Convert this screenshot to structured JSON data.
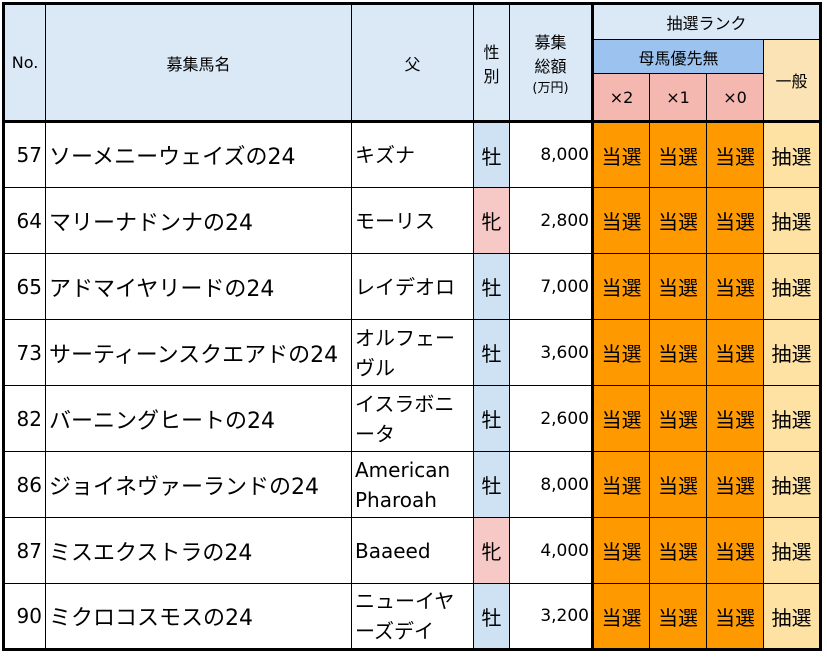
{
  "header": {
    "no": "No.",
    "horse_name": "募集馬名",
    "sire": "父",
    "sex_line1": "性",
    "sex_line2": "別",
    "amount_line1": "募集",
    "amount_line2": "総額",
    "amount_unit": "(万円)",
    "rank_title": "抽選ランク",
    "rank_sub": "母馬優先無",
    "mult_x2": "×2",
    "mult_x1": "×1",
    "mult_x0": "×0",
    "ippan": "一般"
  },
  "rows": [
    {
      "no": "57",
      "name": "ソーメニーウェイズの24",
      "sire": "キズナ",
      "sex": "牡",
      "sex_type": "m",
      "amount": "8,000",
      "x2": "当選",
      "x1": "当選",
      "x0": "当選",
      "ippan": "抽選"
    },
    {
      "no": "64",
      "name": "マリーナドンナの24",
      "sire": "モーリス",
      "sex": "牝",
      "sex_type": "f",
      "amount": "2,800",
      "x2": "当選",
      "x1": "当選",
      "x0": "当選",
      "ippan": "抽選"
    },
    {
      "no": "65",
      "name": "アドマイヤリードの24",
      "sire": "レイデオロ",
      "sex": "牡",
      "sex_type": "m",
      "amount": "7,000",
      "x2": "当選",
      "x1": "当選",
      "x0": "当選",
      "ippan": "抽選"
    },
    {
      "no": "73",
      "name": "サーティーンスクエアドの24",
      "sire": "オルフェーヴル",
      "sex": "牡",
      "sex_type": "m",
      "amount": "3,600",
      "x2": "当選",
      "x1": "当選",
      "x0": "当選",
      "ippan": "抽選"
    },
    {
      "no": "82",
      "name": "バーニングヒートの24",
      "sire": "イスラボニータ",
      "sex": "牡",
      "sex_type": "m",
      "amount": "2,600",
      "x2": "当選",
      "x1": "当選",
      "x0": "当選",
      "ippan": "抽選"
    },
    {
      "no": "86",
      "name": "ジョイネヴァーランドの24",
      "sire": "American Pharoah",
      "sex": "牡",
      "sex_type": "m",
      "amount": "8,000",
      "x2": "当選",
      "x1": "当選",
      "x0": "当選",
      "ippan": "抽選"
    },
    {
      "no": "87",
      "name": "ミスエクストラの24",
      "sire": "Baaeed",
      "sex": "牝",
      "sex_type": "f",
      "amount": "4,000",
      "x2": "当選",
      "x1": "当選",
      "x0": "当選",
      "ippan": "抽選"
    },
    {
      "no": "90",
      "name": "ミクロコスモスの24",
      "sire": "ニューイヤーズデイ",
      "sex": "牡",
      "sex_type": "m",
      "amount": "3,200",
      "x2": "当選",
      "x1": "当選",
      "x0": "当選",
      "ippan": "抽選"
    }
  ],
  "colors": {
    "header_bg": "#dbe9f7",
    "rank_sub_bg": "#9cc3ef",
    "mult_bg": "#f4b8b0",
    "ippan_header_bg": "#fce3b6",
    "win_bg": "#ff9900",
    "lottery_bg": "#fde2a4",
    "male_bg": "#cfe2f3",
    "female_bg": "#f7c9c6"
  }
}
